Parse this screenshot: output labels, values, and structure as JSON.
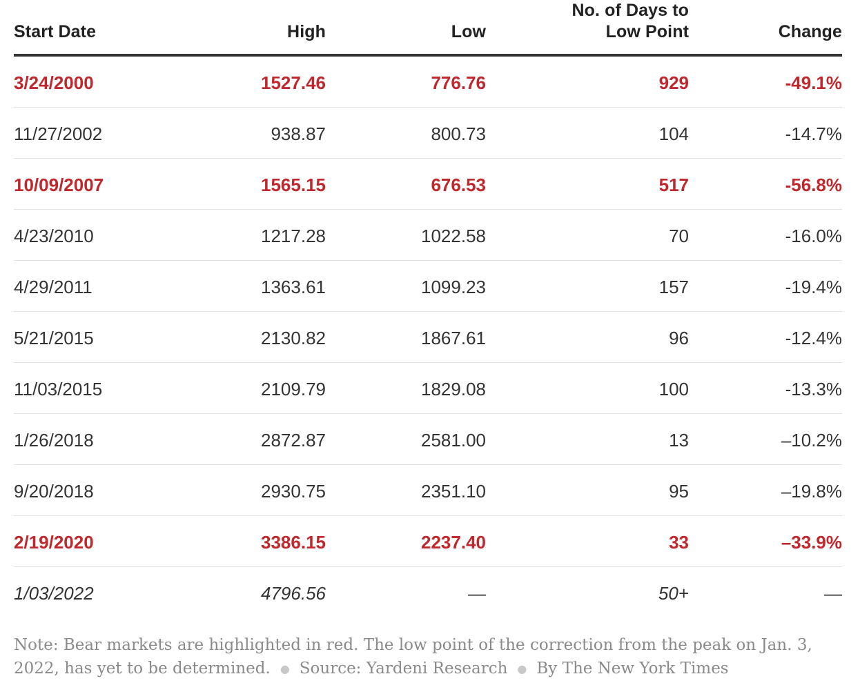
{
  "chart_data": {
    "type": "table",
    "columns": [
      "Start Date",
      "High",
      "Low",
      "No. of Days to Low Point",
      "Change"
    ],
    "rows": [
      {
        "start_date": "3/24/2000",
        "high": "1527.46",
        "low": "776.76",
        "days": "929",
        "change": "-49.1%",
        "bear": true
      },
      {
        "start_date": "11/27/2002",
        "high": "938.87",
        "low": "800.73",
        "days": "104",
        "change": "-14.7%",
        "bear": false
      },
      {
        "start_date": "10/09/2007",
        "high": "1565.15",
        "low": "676.53",
        "days": "517",
        "change": "-56.8%",
        "bear": true
      },
      {
        "start_date": "4/23/2010",
        "high": "1217.28",
        "low": "1022.58",
        "days": "70",
        "change": "-16.0%",
        "bear": false
      },
      {
        "start_date": "4/29/2011",
        "high": "1363.61",
        "low": "1099.23",
        "days": "157",
        "change": "-19.4%",
        "bear": false
      },
      {
        "start_date": "5/21/2015",
        "high": "2130.82",
        "low": "1867.61",
        "days": "96",
        "change": "-12.4%",
        "bear": false
      },
      {
        "start_date": "11/03/2015",
        "high": "2109.79",
        "low": "1829.08",
        "days": "100",
        "change": "-13.3%",
        "bear": false
      },
      {
        "start_date": "1/26/2018",
        "high": "2872.87",
        "low": "2581.00",
        "days": "13",
        "change": "–10.2%",
        "bear": false
      },
      {
        "start_date": "9/20/2018",
        "high": "2930.75",
        "low": "2351.10",
        "days": "95",
        "change": "–19.8%",
        "bear": false
      },
      {
        "start_date": "2/19/2020",
        "high": "3386.15",
        "low": "2237.40",
        "days": "33",
        "change": "–33.9%",
        "bear": true
      },
      {
        "start_date": "1/03/2022",
        "high": "4796.56",
        "low": "—",
        "days": "50+",
        "change": "—",
        "bear": false,
        "ongoing": true
      }
    ],
    "bear_color": "#c0282d"
  },
  "header": {
    "start_date": "Start Date",
    "high": "High",
    "low": "Low",
    "days_line1": "No. of Days to",
    "days_line2": "Low Point",
    "change": "Change"
  },
  "footer": {
    "note": "Note: Bear markets are highlighted in red. The low point of the correction from the peak on Jan. 3, 2022, has yet to be determined.",
    "source": "Source: Yardeni Research",
    "credit": "By The New York Times"
  }
}
